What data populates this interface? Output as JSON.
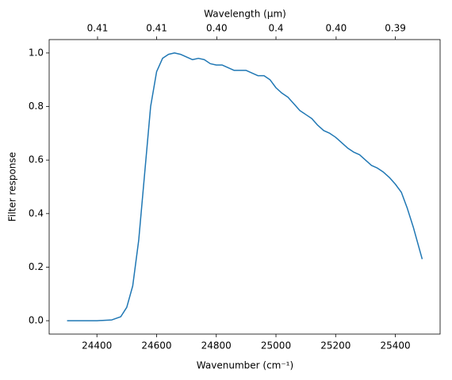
{
  "chart_data": {
    "type": "line",
    "x_label": "Wavenumber (cm⁻¹)",
    "y_label": "Filter response",
    "x2_label": "Wavelength (μm)",
    "color": "#1f77b4",
    "x": [
      24300,
      24400,
      24450,
      24480,
      24500,
      24520,
      24540,
      24560,
      24580,
      24600,
      24620,
      24640,
      24660,
      24680,
      24700,
      24720,
      24740,
      24760,
      24780,
      24800,
      24820,
      24840,
      24860,
      24880,
      24900,
      24920,
      24940,
      24960,
      24980,
      25000,
      25020,
      25040,
      25060,
      25080,
      25100,
      25120,
      25140,
      25160,
      25180,
      25200,
      25220,
      25240,
      25260,
      25280,
      25300,
      25320,
      25340,
      25360,
      25380,
      25400,
      25420,
      25440,
      25460,
      25480,
      25490
    ],
    "values": [
      0,
      0,
      0.003,
      0.015,
      0.05,
      0.13,
      0.3,
      0.55,
      0.8,
      0.93,
      0.98,
      0.995,
      1.0,
      0.995,
      0.985,
      0.975,
      0.98,
      0.975,
      0.96,
      0.955,
      0.955,
      0.945,
      0.935,
      0.935,
      0.935,
      0.925,
      0.915,
      0.915,
      0.9,
      0.87,
      0.85,
      0.835,
      0.81,
      0.785,
      0.77,
      0.755,
      0.73,
      0.71,
      0.7,
      0.685,
      0.665,
      0.645,
      0.63,
      0.62,
      0.6,
      0.58,
      0.57,
      0.555,
      0.535,
      0.51,
      0.48,
      0.42,
      0.35,
      0.27,
      0.23
    ],
    "xlim": [
      24240,
      25550
    ],
    "ylim": [
      -0.05,
      1.05
    ],
    "xticks": [
      24400,
      24600,
      24800,
      25000,
      25200,
      25400
    ],
    "yticks": [
      {
        "value": 0,
        "label": "0.0"
      },
      0.2,
      0.4,
      0.6,
      0.8,
      {
        "value": 1,
        "label": "1.0"
      }
    ],
    "x2lim": [
      0.41254,
      0.39139
    ],
    "x2scale": "reciprocal",
    "x2ticks": [
      {
        "value": 0.4098,
        "label": "0.41"
      },
      {
        "value": 0.4065,
        "label": "0.41"
      },
      {
        "value": 0.4032,
        "label": "0.40"
      },
      0.4,
      {
        "value": 0.3968,
        "label": "0.40"
      },
      {
        "value": 0.3937,
        "label": "0.39"
      }
    ]
  }
}
